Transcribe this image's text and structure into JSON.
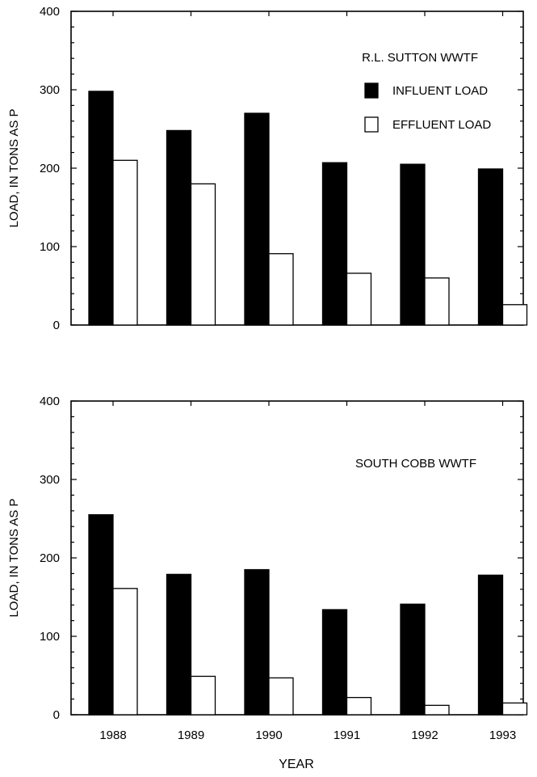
{
  "chart_data": [
    {
      "type": "bar",
      "title": "R.L. SUTTON WWTF",
      "ylabel": "LOAD, IN TONS AS P",
      "xlabel": "",
      "ylim": [
        0,
        400
      ],
      "yticks": [
        0,
        100,
        200,
        300,
        400
      ],
      "categories": [
        "1988",
        "1989",
        "1990",
        "1991",
        "1992",
        "1993"
      ],
      "series": [
        {
          "name": "INFLUENT LOAD",
          "color": "#000000",
          "values": [
            298,
            248,
            270,
            207,
            205,
            199
          ]
        },
        {
          "name": "EFFLUENT LOAD",
          "color": "#ffffff",
          "values": [
            210,
            180,
            91,
            66,
            60,
            26
          ]
        }
      ],
      "legend": "top-right",
      "grid": false
    },
    {
      "type": "bar",
      "title": "SOUTH COBB WWTF",
      "ylabel": "LOAD, IN TONS AS P",
      "xlabel": "YEAR",
      "ylim": [
        0,
        400
      ],
      "yticks": [
        0,
        100,
        200,
        300,
        400
      ],
      "categories": [
        "1988",
        "1989",
        "1990",
        "1991",
        "1992",
        "1993"
      ],
      "series": [
        {
          "name": "INFLUENT LOAD",
          "color": "#000000",
          "values": [
            255,
            179,
            185,
            134,
            141,
            178
          ]
        },
        {
          "name": "EFFLUENT LOAD",
          "color": "#ffffff",
          "values": [
            161,
            49,
            47,
            22,
            12,
            15
          ]
        }
      ],
      "legend": "none",
      "grid": false
    }
  ]
}
